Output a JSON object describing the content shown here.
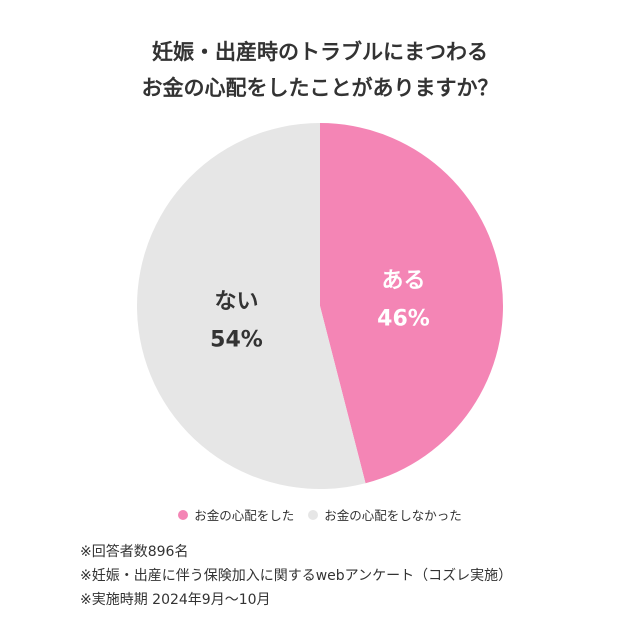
{
  "title_lines": [
    "妊娠・出産時のトラブルにまつわる",
    "お金の心配をしたことがありますか？"
  ],
  "chart_data": {
    "type": "pie",
    "title": "妊娠・出産時のトラブルにまつわる お金の心配をしたことがありますか？",
    "slices": [
      {
        "label": "ある",
        "value": 46,
        "value_label": "46%",
        "legend": "お金の心配をした",
        "color": "#f485b5",
        "text_color": "#ffffff"
      },
      {
        "label": "ない",
        "value": 54,
        "value_label": "54%",
        "legend": "お金の心配をしなかった",
        "color": "#e6e6e6",
        "text_color": "#333333"
      }
    ],
    "start": "12 o'clock",
    "direction": "clockwise",
    "legend_position": "bottom"
  },
  "notes": [
    "※回答者数896名",
    "※妊娠・出産に伴う保険加入に関するwebアンケート（コズレ実施）",
    "※実施時期 2024年9月〜10月"
  ]
}
